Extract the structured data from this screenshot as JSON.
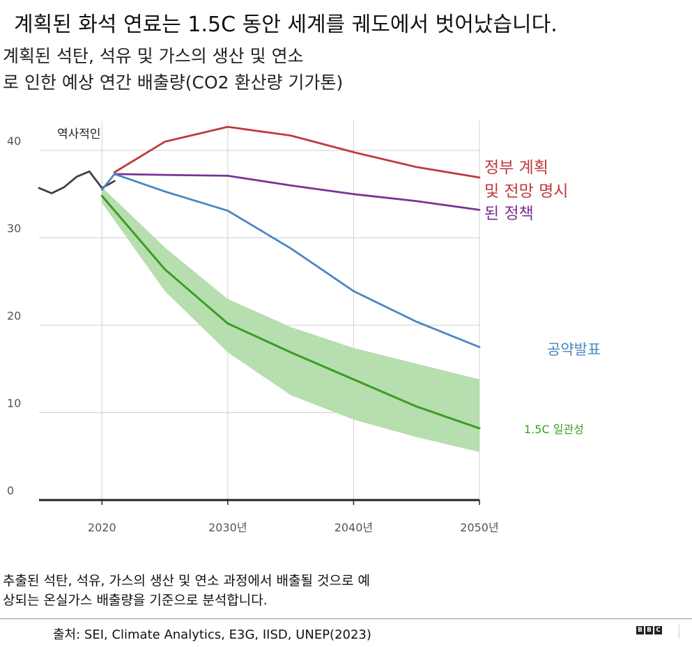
{
  "headline": "계획된 화석 연료는 1.5C 동안 세계를 궤도에서 벗어났습니다.",
  "subtitle_lines": [
    "계획된 석탄, 석유 및 가스의 생산 및 연소",
    "로 인한 예상 연간 배출량(CO2 환산량 기가톤)"
  ],
  "note_lines": [
    "추출된 석탄, 석유, 가스의 생산 및 연소 과정에서 배출될 것으로 예",
    "상되는 온실가스 배출량을 기준으로 분석합니다."
  ],
  "source": "출처: SEI, Climate Analytics, E3G, IISD, UNEP(2023)",
  "logo_letters": [
    "B",
    "B",
    "C"
  ],
  "colors": {
    "historical": "#404040",
    "government": "#c0393b",
    "stated": "#7b3294",
    "pledges": "#4a86c0",
    "c15": "#3a9d23",
    "c15_band": "#b7deae",
    "grid": "#d0d0d0",
    "axis": "#222222",
    "tick_text": "#555555"
  },
  "chart_data": {
    "type": "line",
    "ylim": [
      0,
      45
    ],
    "xlim": [
      2015,
      2050
    ],
    "yticks": [
      0,
      10,
      20,
      30,
      40
    ],
    "ytick_labels": [
      "0",
      "10",
      "20",
      "30",
      "40"
    ],
    "xticks": [
      2020,
      2030,
      2040,
      2050
    ],
    "xtick_labels": [
      "2020",
      "2030년",
      "2040년",
      "2050년"
    ],
    "grid": true,
    "annotation_historical": "역사적인",
    "series": [
      {
        "key": "historical",
        "x": [
          2015,
          2016,
          2017,
          2018,
          2019,
          2020,
          2021
        ],
        "y": [
          35.7,
          35.1,
          35.8,
          37.0,
          37.6,
          35.7,
          36.5
        ]
      },
      {
        "key": "government",
        "name": "정부 계획",
        "x": [
          2021,
          2025,
          2030,
          2035,
          2040,
          2045,
          2050
        ],
        "y": [
          37.5,
          41.0,
          42.7,
          41.7,
          39.8,
          38.1,
          36.9
        ]
      },
      {
        "key": "stated",
        "name": "및 전망 명시 된 정책",
        "x": [
          2021,
          2025,
          2030,
          2035,
          2040,
          2045,
          2050
        ],
        "y": [
          37.3,
          37.2,
          37.1,
          36.0,
          35.0,
          34.2,
          33.2
        ]
      },
      {
        "key": "pledges",
        "name": "공약발표",
        "x": [
          2020,
          2021,
          2025,
          2030,
          2035,
          2040,
          2045,
          2050
        ],
        "y": [
          35.5,
          37.3,
          35.3,
          33.1,
          28.8,
          23.9,
          20.4,
          17.5
        ]
      },
      {
        "key": "c15",
        "name": "1.5C 일관성",
        "x": [
          2020,
          2025,
          2030,
          2035,
          2040,
          2045,
          2050
        ],
        "y": [
          34.8,
          26.4,
          20.2,
          16.9,
          13.8,
          10.7,
          8.2
        ],
        "band_low": [
          34.0,
          23.9,
          16.9,
          12.0,
          9.2,
          7.2,
          5.5
        ],
        "band_high": [
          35.8,
          28.9,
          23.0,
          19.8,
          17.4,
          15.6,
          13.8
        ]
      }
    ],
    "legend_labels": {
      "government_line1": "정부 계획",
      "government_line2": "및 전망 명시",
      "stated_line": "된 정책",
      "pledges": "공약발표",
      "c15": "1.5C 일관성"
    }
  }
}
